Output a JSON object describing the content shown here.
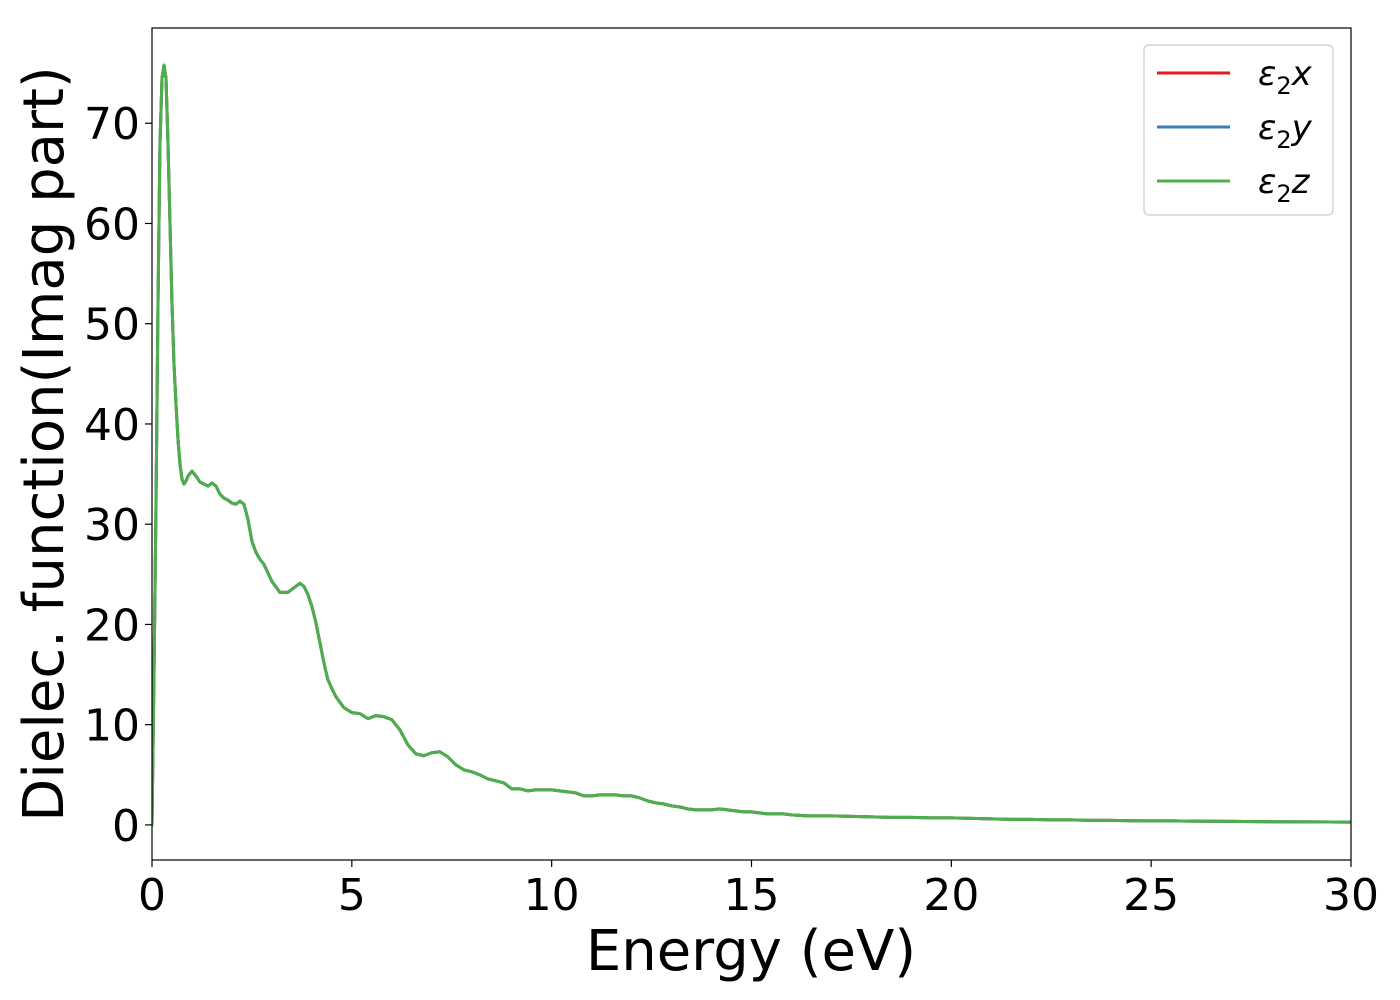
{
  "chart_data": {
    "type": "line",
    "title": "",
    "xlabel": "Energy (eV)",
    "ylabel": "Dielec. function(Imag part)",
    "xlim": [
      0,
      30
    ],
    "ylim": [
      -3.5,
      79.5
    ],
    "xticks": [
      0,
      5,
      10,
      15,
      20,
      25,
      30
    ],
    "yticks": [
      0,
      10,
      20,
      30,
      40,
      50,
      60,
      70
    ],
    "grid": false,
    "legend_position": "top-right",
    "series": [
      {
        "name": "ε₂x",
        "legend_base": "ε",
        "legend_sub": "2",
        "legend_suffix": "x",
        "color": "#e41a1c",
        "x": [
          0,
          0.05,
          0.1,
          0.15,
          0.2,
          0.25,
          0.3,
          0.35,
          0.4,
          0.45,
          0.5,
          0.55,
          0.6,
          0.65,
          0.7,
          0.75,
          0.8,
          0.85,
          0.9,
          1.0,
          1.1,
          1.2,
          1.3,
          1.4,
          1.5,
          1.6,
          1.7,
          1.8,
          1.9,
          2.0,
          2.1,
          2.2,
          2.3,
          2.4,
          2.5,
          2.6,
          2.7,
          2.8,
          3.0,
          3.2,
          3.4,
          3.5,
          3.6,
          3.7,
          3.8,
          3.9,
          4.0,
          4.1,
          4.2,
          4.3,
          4.4,
          4.5,
          4.6,
          4.8,
          5.0,
          5.2,
          5.4,
          5.6,
          5.8,
          6.0,
          6.2,
          6.4,
          6.6,
          6.8,
          7.0,
          7.2,
          7.4,
          7.6,
          7.8,
          8.0,
          8.2,
          8.4,
          8.6,
          8.8,
          9.0,
          9.2,
          9.4,
          9.6,
          9.8,
          10.0,
          10.2,
          10.4,
          10.6,
          10.8,
          11.0,
          11.2,
          11.4,
          11.6,
          11.8,
          12.0,
          12.2,
          12.4,
          12.6,
          12.8,
          13.0,
          13.2,
          13.4,
          13.6,
          13.8,
          14.0,
          14.2,
          14.4,
          14.6,
          14.8,
          15.0,
          15.2,
          15.4,
          15.6,
          15.8,
          16.0,
          16.2,
          16.4,
          16.6,
          16.8,
          17.0,
          17.5,
          18.0,
          18.5,
          19.0,
          19.5,
          20.0,
          20.5,
          21.0,
          21.5,
          22.0,
          22.5,
          23.0,
          23.5,
          24.0,
          24.5,
          25.0,
          25.5,
          26.0,
          27.0,
          28.0,
          29.0,
          30.0
        ],
        "y": [
          0,
          15,
          32,
          52,
          68,
          74.5,
          75.8,
          74.5,
          68,
          60,
          52,
          46,
          42,
          38.5,
          36,
          34.5,
          34,
          34.3,
          34.8,
          35.3,
          34.8,
          34.2,
          34.0,
          33.8,
          34.1,
          33.8,
          33.0,
          32.6,
          32.4,
          32.1,
          32.0,
          32.3,
          32.0,
          30.5,
          28.3,
          27.2,
          26.5,
          26.0,
          24.3,
          23.2,
          23.2,
          23.5,
          23.8,
          24.1,
          23.8,
          23.0,
          21.8,
          20.2,
          18.2,
          16.2,
          14.5,
          13.6,
          12.8,
          11.7,
          11.2,
          11.1,
          10.6,
          10.9,
          10.8,
          10.5,
          9.5,
          8.0,
          7.1,
          6.9,
          7.2,
          7.3,
          6.8,
          6.0,
          5.5,
          5.3,
          5.0,
          4.6,
          4.4,
          4.2,
          3.6,
          3.6,
          3.4,
          3.5,
          3.5,
          3.5,
          3.4,
          3.3,
          3.2,
          2.9,
          2.9,
          3.0,
          3.0,
          3.0,
          2.9,
          2.9,
          2.7,
          2.4,
          2.2,
          2.1,
          1.9,
          1.8,
          1.6,
          1.5,
          1.5,
          1.5,
          1.6,
          1.5,
          1.4,
          1.3,
          1.3,
          1.2,
          1.1,
          1.1,
          1.1,
          1.0,
          0.95,
          0.9,
          0.9,
          0.9,
          0.9,
          0.85,
          0.8,
          0.75,
          0.75,
          0.7,
          0.7,
          0.65,
          0.6,
          0.55,
          0.55,
          0.5,
          0.5,
          0.45,
          0.45,
          0.42,
          0.4,
          0.4,
          0.38,
          0.35,
          0.32,
          0.3,
          0.28
        ]
      },
      {
        "name": "ε₂y",
        "legend_base": "ε",
        "legend_sub": "2",
        "legend_suffix": "y",
        "color": "#377eb8",
        "x": [
          0,
          0.05,
          0.1,
          0.15,
          0.2,
          0.25,
          0.3,
          0.35,
          0.4,
          0.45,
          0.5,
          0.55,
          0.6,
          0.65,
          0.7,
          0.75,
          0.8,
          0.85,
          0.9,
          1.0,
          1.1,
          1.2,
          1.3,
          1.4,
          1.5,
          1.6,
          1.7,
          1.8,
          1.9,
          2.0,
          2.1,
          2.2,
          2.3,
          2.4,
          2.5,
          2.6,
          2.7,
          2.8,
          3.0,
          3.2,
          3.4,
          3.5,
          3.6,
          3.7,
          3.8,
          3.9,
          4.0,
          4.1,
          4.2,
          4.3,
          4.4,
          4.5,
          4.6,
          4.8,
          5.0,
          5.2,
          5.4,
          5.6,
          5.8,
          6.0,
          6.2,
          6.4,
          6.6,
          6.8,
          7.0,
          7.2,
          7.4,
          7.6,
          7.8,
          8.0,
          8.2,
          8.4,
          8.6,
          8.8,
          9.0,
          9.2,
          9.4,
          9.6,
          9.8,
          10.0,
          10.2,
          10.4,
          10.6,
          10.8,
          11.0,
          11.2,
          11.4,
          11.6,
          11.8,
          12.0,
          12.2,
          12.4,
          12.6,
          12.8,
          13.0,
          13.2,
          13.4,
          13.6,
          13.8,
          14.0,
          14.2,
          14.4,
          14.6,
          14.8,
          15.0,
          15.2,
          15.4,
          15.6,
          15.8,
          16.0,
          16.2,
          16.4,
          16.6,
          16.8,
          17.0,
          17.5,
          18.0,
          18.5,
          19.0,
          19.5,
          20.0,
          20.5,
          21.0,
          21.5,
          22.0,
          22.5,
          23.0,
          23.5,
          24.0,
          24.5,
          25.0,
          25.5,
          26.0,
          27.0,
          28.0,
          29.0,
          30.0
        ],
        "y": [
          0,
          15,
          32,
          52,
          68,
          74.5,
          75.8,
          74.5,
          68,
          60,
          52,
          46,
          42,
          38.5,
          36,
          34.5,
          34,
          34.3,
          34.8,
          35.3,
          34.8,
          34.2,
          34.0,
          33.8,
          34.1,
          33.8,
          33.0,
          32.6,
          32.4,
          32.1,
          32.0,
          32.3,
          32.0,
          30.5,
          28.3,
          27.2,
          26.5,
          26.0,
          24.3,
          23.2,
          23.2,
          23.5,
          23.8,
          24.1,
          23.8,
          23.0,
          21.8,
          20.2,
          18.2,
          16.2,
          14.5,
          13.6,
          12.8,
          11.7,
          11.2,
          11.1,
          10.6,
          10.9,
          10.8,
          10.5,
          9.5,
          8.0,
          7.1,
          6.9,
          7.2,
          7.3,
          6.8,
          6.0,
          5.5,
          5.3,
          5.0,
          4.6,
          4.4,
          4.2,
          3.6,
          3.6,
          3.4,
          3.5,
          3.5,
          3.5,
          3.4,
          3.3,
          3.2,
          2.9,
          2.9,
          3.0,
          3.0,
          3.0,
          2.9,
          2.9,
          2.7,
          2.4,
          2.2,
          2.1,
          1.9,
          1.8,
          1.6,
          1.5,
          1.5,
          1.5,
          1.6,
          1.5,
          1.4,
          1.3,
          1.3,
          1.2,
          1.1,
          1.1,
          1.1,
          1.0,
          0.95,
          0.9,
          0.9,
          0.9,
          0.9,
          0.85,
          0.8,
          0.75,
          0.75,
          0.7,
          0.7,
          0.65,
          0.6,
          0.55,
          0.55,
          0.5,
          0.5,
          0.45,
          0.45,
          0.42,
          0.4,
          0.4,
          0.38,
          0.35,
          0.32,
          0.3,
          0.28
        ]
      },
      {
        "name": "ε₂z",
        "legend_base": "ε",
        "legend_sub": "2",
        "legend_suffix": "z",
        "color": "#4daf4a",
        "x": [
          0,
          0.05,
          0.1,
          0.15,
          0.2,
          0.25,
          0.3,
          0.35,
          0.4,
          0.45,
          0.5,
          0.55,
          0.6,
          0.65,
          0.7,
          0.75,
          0.8,
          0.85,
          0.9,
          1.0,
          1.1,
          1.2,
          1.3,
          1.4,
          1.5,
          1.6,
          1.7,
          1.8,
          1.9,
          2.0,
          2.1,
          2.2,
          2.3,
          2.4,
          2.5,
          2.6,
          2.7,
          2.8,
          3.0,
          3.2,
          3.4,
          3.5,
          3.6,
          3.7,
          3.8,
          3.9,
          4.0,
          4.1,
          4.2,
          4.3,
          4.4,
          4.5,
          4.6,
          4.8,
          5.0,
          5.2,
          5.4,
          5.6,
          5.8,
          6.0,
          6.2,
          6.4,
          6.6,
          6.8,
          7.0,
          7.2,
          7.4,
          7.6,
          7.8,
          8.0,
          8.2,
          8.4,
          8.6,
          8.8,
          9.0,
          9.2,
          9.4,
          9.6,
          9.8,
          10.0,
          10.2,
          10.4,
          10.6,
          10.8,
          11.0,
          11.2,
          11.4,
          11.6,
          11.8,
          12.0,
          12.2,
          12.4,
          12.6,
          12.8,
          13.0,
          13.2,
          13.4,
          13.6,
          13.8,
          14.0,
          14.2,
          14.4,
          14.6,
          14.8,
          15.0,
          15.2,
          15.4,
          15.6,
          15.8,
          16.0,
          16.2,
          16.4,
          16.6,
          16.8,
          17.0,
          17.5,
          18.0,
          18.5,
          19.0,
          19.5,
          20.0,
          20.5,
          21.0,
          21.5,
          22.0,
          22.5,
          23.0,
          23.5,
          24.0,
          24.5,
          25.0,
          25.5,
          26.0,
          27.0,
          28.0,
          29.0,
          30.0
        ],
        "y": [
          0,
          15,
          32,
          52,
          68,
          74.5,
          75.8,
          74.5,
          68,
          60,
          52,
          46,
          42,
          38.5,
          36,
          34.5,
          34,
          34.3,
          34.8,
          35.3,
          34.8,
          34.2,
          34.0,
          33.8,
          34.1,
          33.8,
          33.0,
          32.6,
          32.4,
          32.1,
          32.0,
          32.3,
          32.0,
          30.5,
          28.3,
          27.2,
          26.5,
          26.0,
          24.3,
          23.2,
          23.2,
          23.5,
          23.8,
          24.1,
          23.8,
          23.0,
          21.8,
          20.2,
          18.2,
          16.2,
          14.5,
          13.6,
          12.8,
          11.7,
          11.2,
          11.1,
          10.6,
          10.9,
          10.8,
          10.5,
          9.5,
          8.0,
          7.1,
          6.9,
          7.2,
          7.3,
          6.8,
          6.0,
          5.5,
          5.3,
          5.0,
          4.6,
          4.4,
          4.2,
          3.6,
          3.6,
          3.4,
          3.5,
          3.5,
          3.5,
          3.4,
          3.3,
          3.2,
          2.9,
          2.9,
          3.0,
          3.0,
          3.0,
          2.9,
          2.9,
          2.7,
          2.4,
          2.2,
          2.1,
          1.9,
          1.8,
          1.6,
          1.5,
          1.5,
          1.5,
          1.6,
          1.5,
          1.4,
          1.3,
          1.3,
          1.2,
          1.1,
          1.1,
          1.1,
          1.0,
          0.95,
          0.9,
          0.9,
          0.9,
          0.9,
          0.85,
          0.8,
          0.75,
          0.75,
          0.7,
          0.7,
          0.65,
          0.6,
          0.55,
          0.55,
          0.5,
          0.5,
          0.45,
          0.45,
          0.42,
          0.4,
          0.4,
          0.38,
          0.35,
          0.32,
          0.3,
          0.28
        ]
      }
    ]
  }
}
